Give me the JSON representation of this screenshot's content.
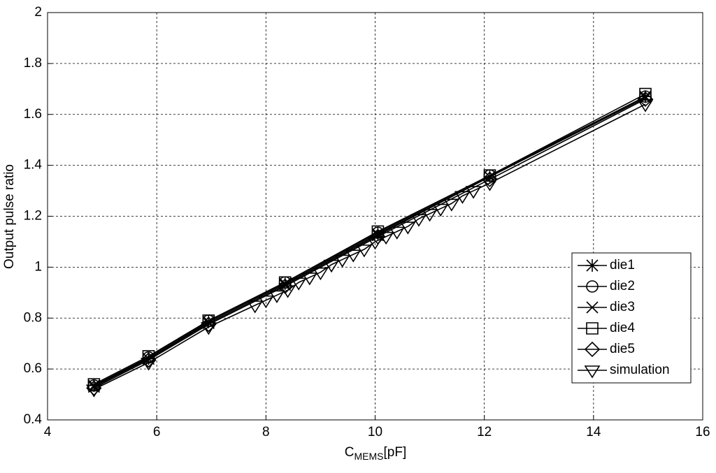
{
  "chart_data": {
    "type": "line",
    "ylabel": "Output pulse ratio",
    "xlabel": {
      "main": "C",
      "subscript": "MEMS",
      "unit": "[pF]"
    },
    "xlim": [
      4,
      16
    ],
    "xticks": [
      4,
      6,
      8,
      10,
      12,
      14,
      16
    ],
    "ylim": [
      0.4,
      2
    ],
    "yticks": [
      0.4,
      0.6,
      0.8,
      1,
      1.2,
      1.4,
      1.6,
      1.8,
      2
    ],
    "grid": true,
    "legend": "lower right",
    "series": [
      {
        "name": "die1",
        "color": "#000000",
        "marker": "asterisk",
        "x": [
          4.85,
          5.85,
          6.95,
          8.35,
          10.05,
          12.1,
          14.95
        ],
        "values": [
          0.535,
          0.64,
          0.785,
          0.935,
          1.13,
          1.355,
          1.67
        ]
      },
      {
        "name": "die2",
        "color": "#000000",
        "marker": "circle",
        "x": [
          4.85,
          5.85,
          6.95,
          8.35,
          10.05,
          12.1,
          14.95
        ],
        "values": [
          0.535,
          0.645,
          0.79,
          0.94,
          1.135,
          1.36,
          1.67
        ]
      },
      {
        "name": "die3",
        "color": "#000000",
        "marker": "x",
        "x": [
          4.85,
          5.85,
          6.95,
          8.35,
          10.05,
          12.1,
          14.95
        ],
        "values": [
          0.53,
          0.64,
          0.78,
          0.93,
          1.125,
          1.355,
          1.665
        ]
      },
      {
        "name": "die4",
        "color": "#000000",
        "marker": "square",
        "x": [
          4.85,
          5.85,
          6.95,
          8.35,
          10.05,
          12.1,
          14.95
        ],
        "values": [
          0.54,
          0.65,
          0.79,
          0.94,
          1.14,
          1.36,
          1.68
        ]
      },
      {
        "name": "die5",
        "color": "#000000",
        "marker": "diamond",
        "x": [
          4.85,
          5.85,
          6.95,
          8.35,
          10.05,
          12.1,
          14.95
        ],
        "values": [
          0.525,
          0.635,
          0.775,
          0.925,
          1.12,
          1.345,
          1.66
        ]
      },
      {
        "name": "simulation",
        "color": "#000000",
        "marker": "triangle-down",
        "x": [
          4.85,
          5.85,
          6.95,
          7.8,
          8.0,
          8.2,
          8.4,
          8.6,
          8.8,
          9.0,
          9.2,
          9.4,
          9.6,
          9.8,
          10.0,
          10.2,
          10.4,
          10.6,
          10.8,
          11.0,
          11.2,
          11.4,
          11.6,
          11.8,
          12.1,
          14.95
        ],
        "values": [
          0.52,
          0.625,
          0.765,
          0.85,
          0.87,
          0.89,
          0.91,
          0.94,
          0.96,
          0.98,
          1.01,
          1.03,
          1.05,
          1.07,
          1.1,
          1.12,
          1.14,
          1.16,
          1.19,
          1.21,
          1.23,
          1.25,
          1.28,
          1.3,
          1.33,
          1.64
        ]
      }
    ]
  }
}
